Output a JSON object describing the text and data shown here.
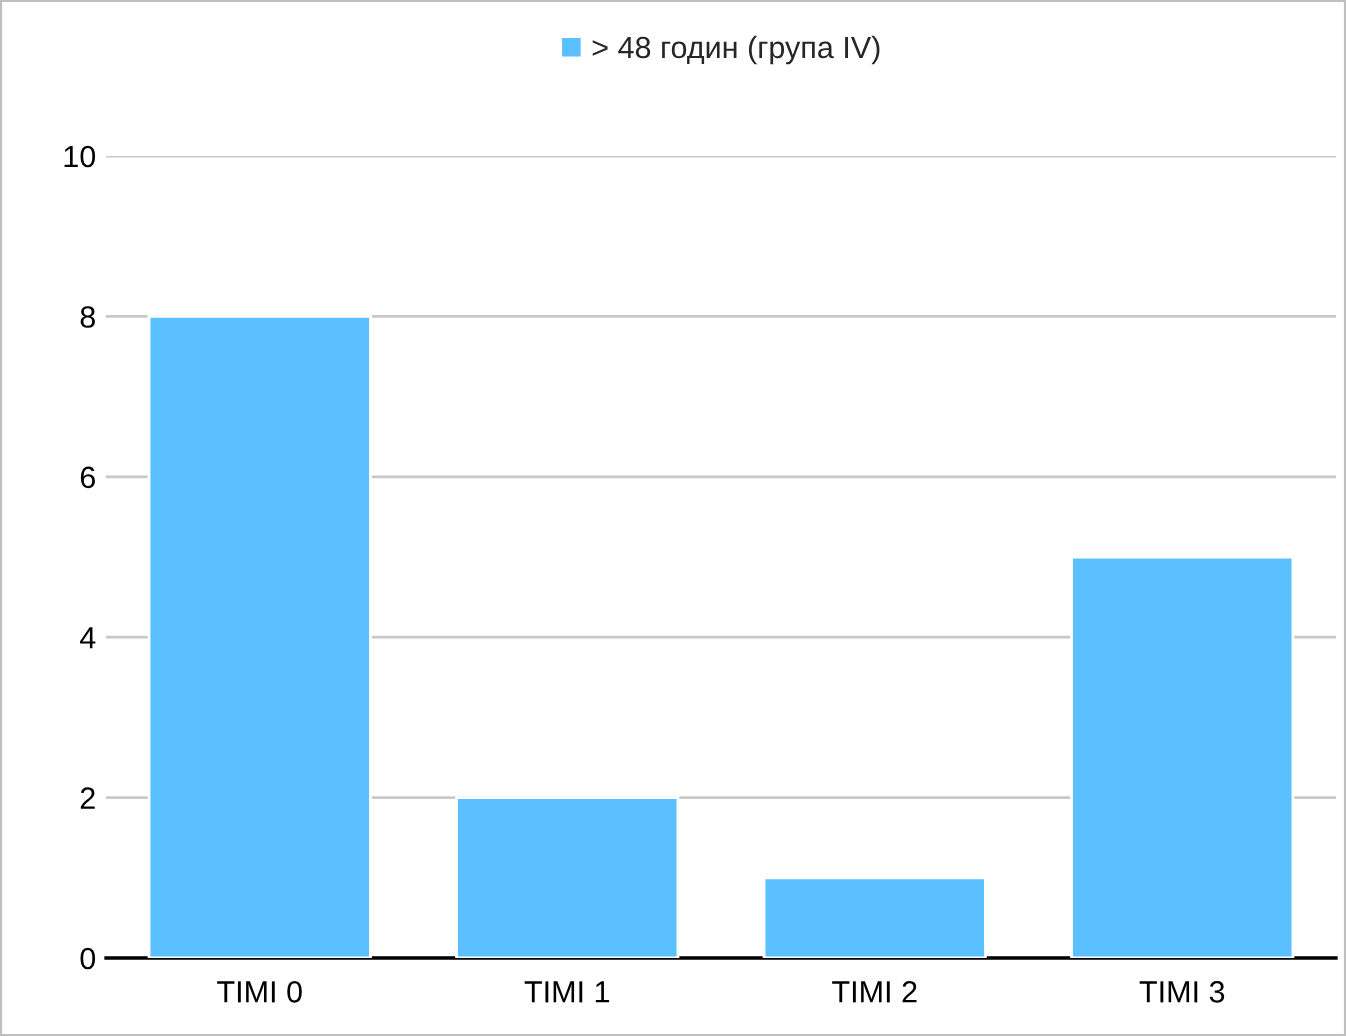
{
  "chart_data": {
    "type": "bar",
    "categories": [
      "TIMI 0",
      "TIMI 1",
      "TIMI 2",
      "TIMI 3"
    ],
    "series": [
      {
        "name": "> 48 годин (група IV)",
        "color": "#5bc0ff",
        "values": [
          8,
          2,
          1,
          5
        ]
      }
    ],
    "ylim": [
      0,
      10
    ],
    "yticks": [
      0,
      2,
      4,
      6,
      8,
      10
    ],
    "grid": "y",
    "legend": "top"
  }
}
